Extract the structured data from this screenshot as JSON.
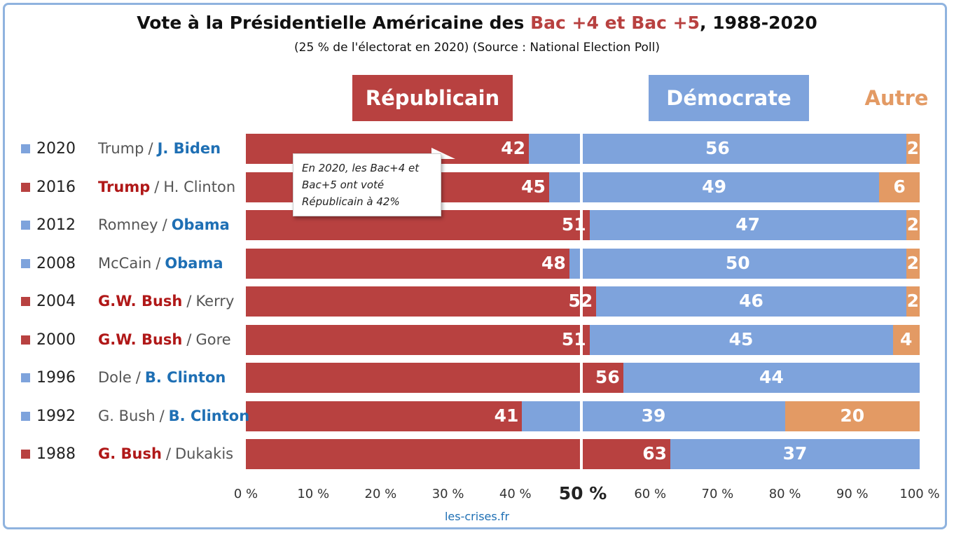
{
  "title_parts": {
    "pre": "Vote à la Présidentielle Américaine des ",
    "highlight": "Bac +4 et Bac +5",
    "post": ", 1988-2020"
  },
  "subtitle": "(25 % de l'électorat en 2020) (Source : National Election Poll)",
  "headers": {
    "rep": "Républicain",
    "dem": "Démocrate",
    "oth": "Autre"
  },
  "callout": "En 2020, les Bac+4 et Bac+5 ont voté Républicain à 42%",
  "source": "les-crises.fr",
  "colors": {
    "rep": "#b84140",
    "dem": "#7ea3dc",
    "oth": "#e39a64",
    "rep_text": "#b01818",
    "dem_text": "#1e6fb4"
  },
  "chart_data": {
    "type": "bar",
    "orientation": "horizontal",
    "stacked": true,
    "title": "Vote à la Présidentielle Américaine des Bac +4 et Bac +5, 1988-2020",
    "xlim": [
      0,
      100
    ],
    "x_ticks": [
      "0 %",
      "10 %",
      "20 %",
      "30 %",
      "40 %",
      "50 %",
      "60 %",
      "70 %",
      "80 %",
      "90 %",
      "100 %"
    ],
    "categories": [
      "2020",
      "2016",
      "2012",
      "2008",
      "2004",
      "2000",
      "1996",
      "1992",
      "1988"
    ],
    "row_winner": [
      "dem",
      "rep",
      "dem",
      "dem",
      "rep",
      "rep",
      "dem",
      "dem",
      "rep"
    ],
    "candidates": [
      {
        "rep": "Trump",
        "dem": "J. Biden",
        "winner": "dem"
      },
      {
        "rep": "Trump",
        "dem": "H. Clinton",
        "winner": "rep"
      },
      {
        "rep": "Romney",
        "dem": "Obama",
        "winner": "dem"
      },
      {
        "rep": "McCain",
        "dem": "Obama",
        "winner": "dem"
      },
      {
        "rep": "G.W. Bush",
        "dem": "Kerry",
        "winner": "rep"
      },
      {
        "rep": "G.W. Bush",
        "dem": "Gore",
        "winner": "rep"
      },
      {
        "rep": "Dole",
        "dem": "B. Clinton",
        "winner": "dem"
      },
      {
        "rep": "G. Bush",
        "dem": "B. Clinton",
        "winner": "dem"
      },
      {
        "rep": "G. Bush",
        "dem": "Dukakis",
        "winner": "rep"
      }
    ],
    "series": [
      {
        "name": "Républicain",
        "values": [
          42,
          45,
          51,
          48,
          52,
          51,
          56,
          41,
          63
        ]
      },
      {
        "name": "Démocrate",
        "values": [
          56,
          49,
          47,
          50,
          46,
          45,
          44,
          39,
          37
        ]
      },
      {
        "name": "Autre",
        "values": [
          2,
          6,
          2,
          2,
          2,
          4,
          0,
          20,
          0
        ]
      }
    ]
  }
}
